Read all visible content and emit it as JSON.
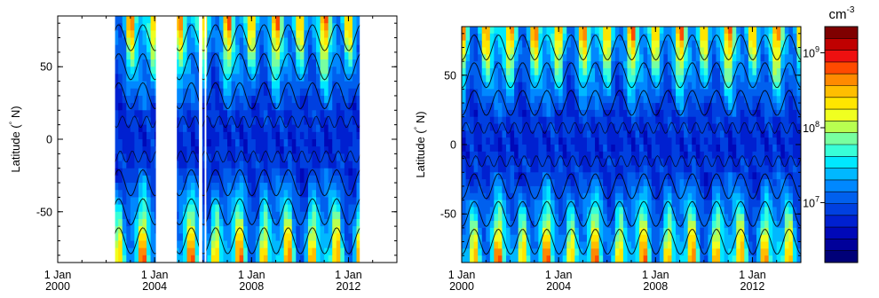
{
  "colorbar": {
    "unit": "cm",
    "unit_exponent": "-3",
    "tick_bases": [
      "10",
      "10",
      "10"
    ],
    "tick_exponents": [
      "9",
      "8",
      "7"
    ],
    "log_values": [
      9,
      8,
      7
    ],
    "range_log": [
      6.2,
      9.35
    ],
    "colors": [
      "#7f0000",
      "#c00000",
      "#ee1010",
      "#ff4a00",
      "#ff8a00",
      "#ffbe00",
      "#ffe600",
      "#f0ff20",
      "#b8ff50",
      "#78ffa0",
      "#38ffd8",
      "#00e8ff",
      "#00b8ff",
      "#0088ff",
      "#0060ee",
      "#0040e0",
      "#0020d0",
      "#0008b8",
      "#00009a",
      "#000078"
    ]
  },
  "chart_data": [
    {
      "type": "heatmap",
      "title": "",
      "ylabel": "Latitude (° N)",
      "ylabel_parts": [
        "Latitude (",
        "°",
        " N)"
      ],
      "xlim": [
        "2000-01-01",
        "2014-01-01"
      ],
      "ylim": [
        -85,
        85
      ],
      "x_ticks": [
        {
          "line1": "1 Jan",
          "line2": "2000",
          "date": "2000-01-01"
        },
        {
          "line1": "1 Jan",
          "line2": "2004",
          "date": "2004-01-01"
        },
        {
          "line1": "1 Jan",
          "line2": "2008",
          "date": "2008-01-01"
        },
        {
          "line1": "1 Jan",
          "line2": "2012",
          "date": "2012-01-01"
        }
      ],
      "y_ticks": [
        {
          "label": "50",
          "value": 50
        },
        {
          "label": "0",
          "value": 0
        },
        {
          "label": "-50",
          "value": -50
        }
      ],
      "data_gaps": [
        [
          "2000-01-01",
          "2002-05-15"
        ],
        [
          "2004-01-20",
          "2004-12-01"
        ],
        [
          "2005-11-01",
          "2005-12-20"
        ],
        [
          "2006-01-25",
          "2006-02-20"
        ],
        [
          "2012-06-20",
          "2014-01-01"
        ]
      ],
      "grid": true,
      "colorscale": "log10 density (cm-3), shared colorbar"
    },
    {
      "type": "heatmap",
      "title": "",
      "ylabel": "Latitude (° N)",
      "ylabel_parts": [
        "Latitude (",
        "°",
        " N)"
      ],
      "xlim": [
        "2000-01-01",
        "2014-01-01"
      ],
      "ylim": [
        -85,
        85
      ],
      "x_ticks": [
        {
          "line1": "1 Jan",
          "line2": "2000",
          "date": "2000-01-01"
        },
        {
          "line1": "1 Jan",
          "line2": "2004",
          "date": "2004-01-01"
        },
        {
          "line1": "1 Jan",
          "line2": "2008",
          "date": "2008-01-01"
        },
        {
          "line1": "1 Jan",
          "line2": "2012",
          "date": "2012-01-01"
        }
      ],
      "y_ticks": [
        {
          "label": "50",
          "value": 50
        },
        {
          "label": "0",
          "value": 0
        },
        {
          "label": "-50",
          "value": -50
        }
      ],
      "data_gaps": [],
      "grid": true,
      "colorscale": "log10 density (cm-3), shared colorbar"
    }
  ]
}
